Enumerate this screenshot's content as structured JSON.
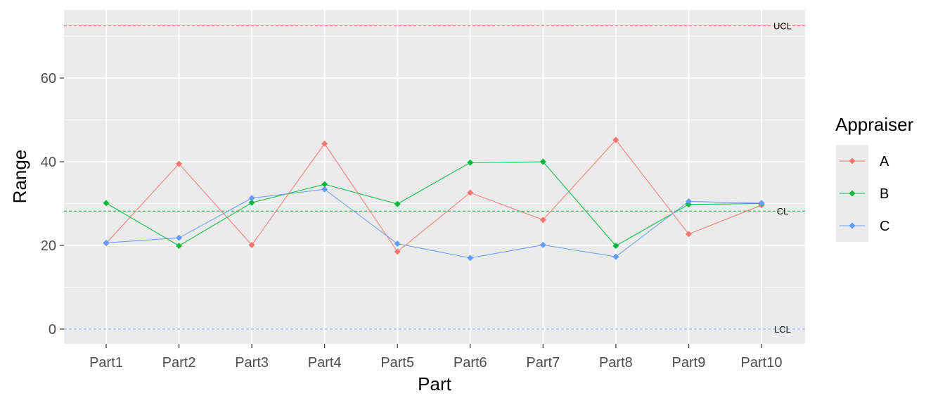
{
  "chart_data": {
    "type": "line",
    "xlabel": "Part",
    "ylabel": "Range",
    "ylim": [
      -3.5,
      76
    ],
    "yticks": [
      0,
      20,
      40,
      60
    ],
    "categories": [
      "Part1",
      "Part2",
      "Part3",
      "Part4",
      "Part5",
      "Part6",
      "Part7",
      "Part8",
      "Part9",
      "Part10"
    ],
    "series": [
      {
        "name": "A",
        "color": "#F8766D",
        "values": [
          20.5,
          39.5,
          20.1,
          44.3,
          18.5,
          32.6,
          26.1,
          45.2,
          22.7,
          29.6
        ]
      },
      {
        "name": "B",
        "color": "#00BA38",
        "values": [
          30.1,
          19.9,
          30.2,
          34.6,
          29.9,
          39.8,
          40.0,
          19.9,
          29.8,
          30.0
        ]
      },
      {
        "name": "C",
        "color": "#619CFF",
        "values": [
          20.6,
          21.8,
          31.3,
          33.4,
          20.4,
          17.0,
          20.1,
          17.3,
          30.5,
          30.1
        ]
      }
    ],
    "reference_lines": [
      {
        "label": "UCL",
        "value": 72.5,
        "color": "#F8766D"
      },
      {
        "label": "CL",
        "value": 28.2,
        "color": "#00BA38"
      },
      {
        "label": "LCL",
        "value": 0,
        "color": "#619CFF"
      }
    ],
    "legend": {
      "title": "Appraiser",
      "position": "right"
    },
    "grid": true,
    "panel_background": "#EBEBEB"
  }
}
